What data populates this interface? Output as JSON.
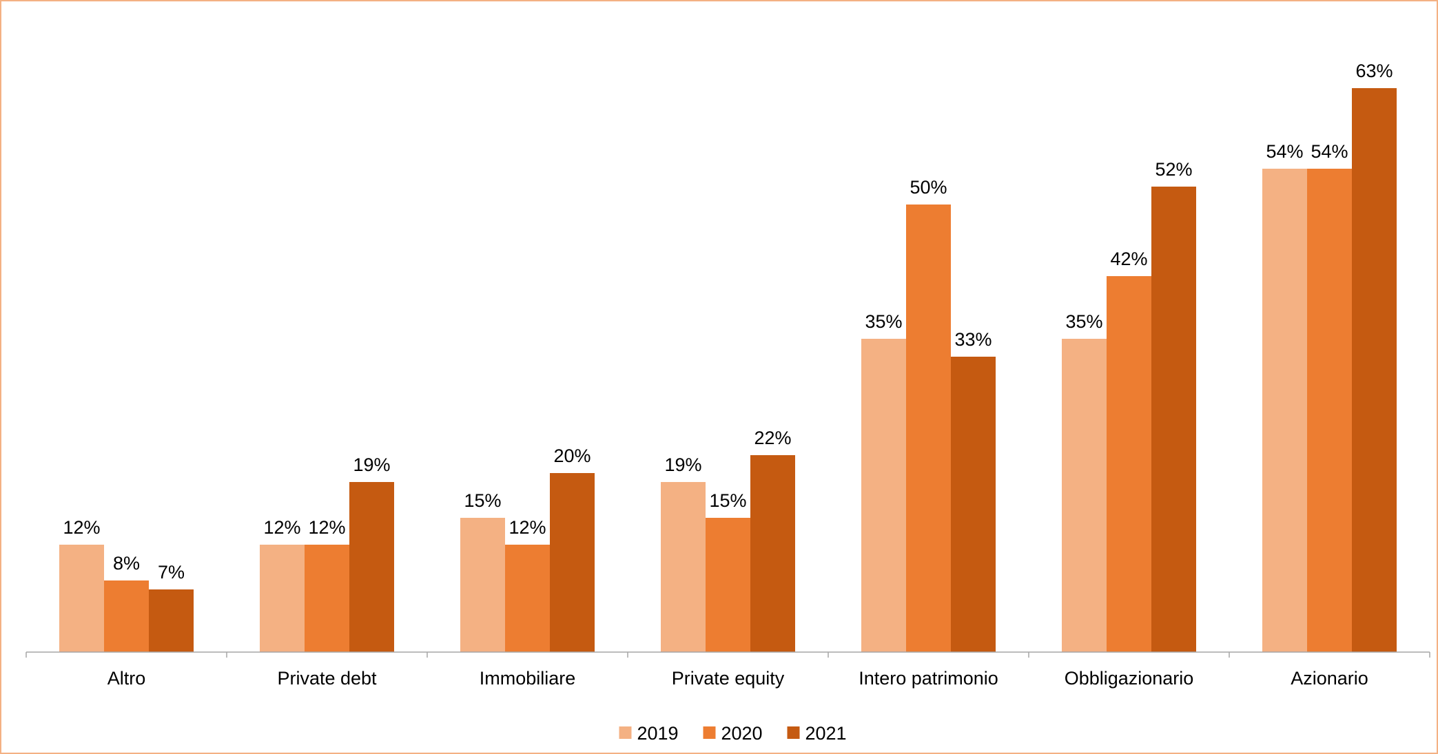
{
  "chart_data": {
    "type": "bar",
    "title": "",
    "xlabel": "",
    "ylabel": "",
    "categories": [
      "Altro",
      "Private debt",
      "Immobiliare",
      "Private equity",
      "Intero patrimonio",
      "Obbligazionario",
      "Azionario"
    ],
    "series": [
      {
        "name": "2019",
        "color": "#f4b183",
        "values": [
          12,
          12,
          15,
          19,
          35,
          35,
          54
        ],
        "labels": [
          "12%",
          "12%",
          "15%",
          "19%",
          "35%",
          "35%",
          "54%"
        ]
      },
      {
        "name": "2020",
        "color": "#ed7d31",
        "values": [
          8,
          12,
          12,
          15,
          50,
          42,
          54
        ],
        "labels": [
          "8%",
          "12%",
          "12%",
          "15%",
          "50%",
          "42%",
          "54%"
        ]
      },
      {
        "name": "2021",
        "color": "#c55a11",
        "values": [
          7,
          19,
          20,
          22,
          33,
          52,
          63
        ],
        "labels": [
          "7%",
          "19%",
          "20%",
          "22%",
          "33%",
          "52%",
          "63%"
        ]
      }
    ],
    "ylim": [
      0,
      70
    ],
    "grid": false,
    "y_axis_visible": false,
    "legend_position": "bottom-center",
    "frame_color": "#f4b183",
    "axis_color": "#a6a6a6"
  }
}
